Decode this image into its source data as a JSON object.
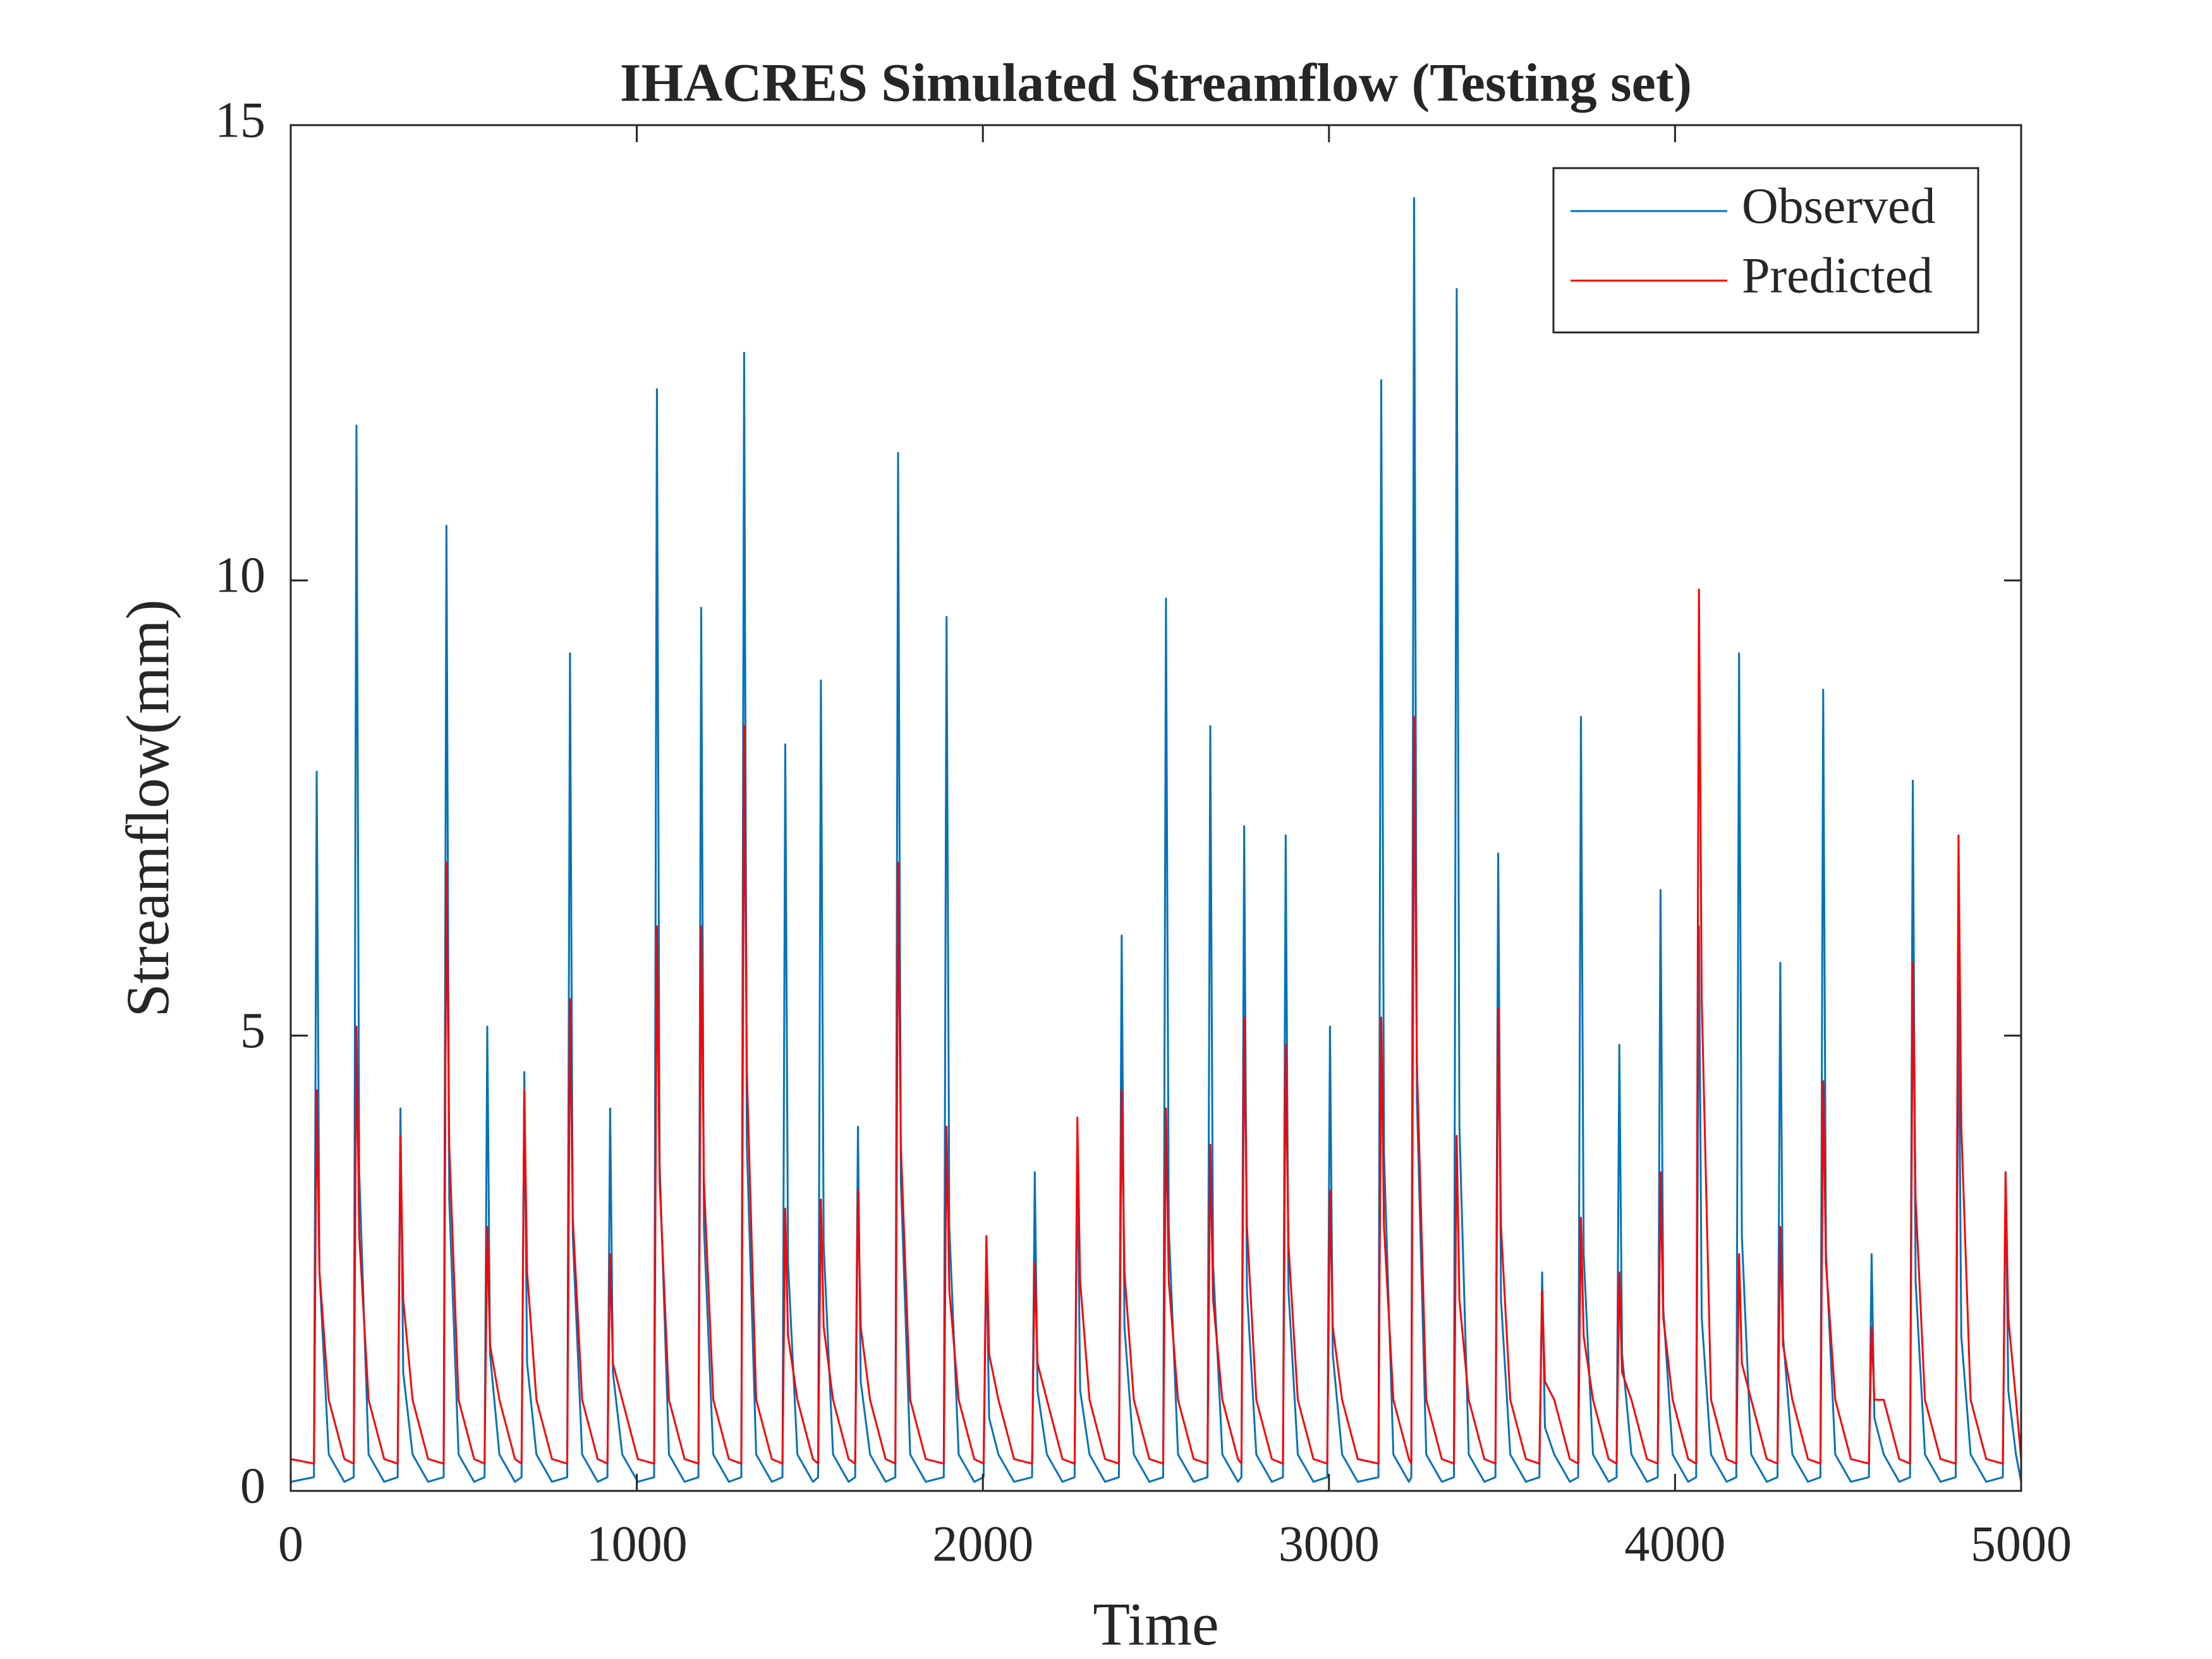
{
  "chart_data": {
    "type": "line",
    "title": "IHACRES Simulated Streamflow (Testing set)",
    "x_label": "Time",
    "y_label": "Streamflow(mm)",
    "xlim": [
      0,
      5000
    ],
    "xticks": [
      0,
      1000,
      2000,
      3000,
      4000,
      5000
    ],
    "ylim": [
      0,
      15
    ],
    "yticks": [
      0,
      5,
      10,
      15
    ],
    "legend": "northeast",
    "x": [
      0,
      67,
      75,
      83,
      110,
      155,
      182,
      190,
      198,
      225,
      270,
      309,
      317,
      325,
      352,
      397,
      442,
      450,
      458,
      485,
      530,
      560,
      568,
      576,
      603,
      648,
      667,
      675,
      683,
      710,
      755,
      799,
      807,
      815,
      842,
      887,
      915,
      923,
      931,
      958,
      1003,
      1050,
      1058,
      1066,
      1093,
      1138,
      1178,
      1186,
      1194,
      1221,
      1266,
      1302,
      1310,
      1318,
      1345,
      1390,
      1421,
      1429,
      1437,
      1464,
      1509,
      1524,
      1532,
      1540,
      1567,
      1612,
      1631,
      1639,
      1647,
      1674,
      1719,
      1747,
      1755,
      1763,
      1790,
      1835,
      1887,
      1895,
      1903,
      1930,
      1975,
      2002,
      2010,
      2018,
      2045,
      2090,
      2142,
      2150,
      2158,
      2185,
      2230,
      2265,
      2273,
      2281,
      2308,
      2353,
      2393,
      2401,
      2409,
      2436,
      2481,
      2521,
      2529,
      2537,
      2564,
      2609,
      2649,
      2657,
      2665,
      2692,
      2737,
      2747,
      2755,
      2763,
      2790,
      2835,
      2867,
      2875,
      2883,
      2910,
      2955,
      2995,
      3003,
      3011,
      3038,
      3083,
      3143,
      3151,
      3159,
      3186,
      3231,
      3238,
      3246,
      3254,
      3281,
      3326,
      3361,
      3369,
      3377,
      3404,
      3449,
      3481,
      3489,
      3497,
      3524,
      3569,
      3608,
      3616,
      3624,
      3651,
      3696,
      3720,
      3728,
      3736,
      3763,
      3808,
      3831,
      3839,
      3847,
      3874,
      3919,
      3950,
      3958,
      3966,
      3993,
      4038,
      4061,
      4069,
      4077,
      4104,
      4149,
      4177,
      4185,
      4193,
      4220,
      4265,
      4296,
      4304,
      4312,
      4339,
      4384,
      4420,
      4428,
      4436,
      4463,
      4508,
      4560,
      4568,
      4576,
      4603,
      4648,
      4679,
      4687,
      4695,
      4722,
      4767,
      4811,
      4819,
      4827,
      4854,
      4899,
      4947,
      4955,
      4963,
      4985,
      5000
    ],
    "series": [
      {
        "name": "Observed",
        "color": "#0072BD",
        "values": [
          0.1,
          0.15,
          7.9,
          2.4,
          0.4,
          0.1,
          0.15,
          11.7,
          3.5,
          0.4,
          0.1,
          0.15,
          4.2,
          1.3,
          0.4,
          0.1,
          0.15,
          10.6,
          3.2,
          0.4,
          0.1,
          0.15,
          5.1,
          1.5,
          0.4,
          0.1,
          0.15,
          4.6,
          1.4,
          0.4,
          0.1,
          0.15,
          9.2,
          2.8,
          0.4,
          0.1,
          0.15,
          4.2,
          1.3,
          0.4,
          0.1,
          0.15,
          12.1,
          3.6,
          0.4,
          0.1,
          0.15,
          9.7,
          2.9,
          0.4,
          0.1,
          0.15,
          12.5,
          3.8,
          0.4,
          0.1,
          0.15,
          8.2,
          2.5,
          0.4,
          0.1,
          0.15,
          8.9,
          2.7,
          0.4,
          0.1,
          0.15,
          4.0,
          1.2,
          0.4,
          0.1,
          0.15,
          11.4,
          3.4,
          0.4,
          0.1,
          0.15,
          9.6,
          2.9,
          0.4,
          0.1,
          0.15,
          2.7,
          0.8,
          0.4,
          0.1,
          0.15,
          3.5,
          1.1,
          0.4,
          0.1,
          0.15,
          3.8,
          1.1,
          0.4,
          0.1,
          0.15,
          6.1,
          1.8,
          0.4,
          0.1,
          0.15,
          9.8,
          2.9,
          0.4,
          0.1,
          0.15,
          8.4,
          2.5,
          0.4,
          0.1,
          0.15,
          7.3,
          2.2,
          0.4,
          0.1,
          0.15,
          7.2,
          2.2,
          0.4,
          0.1,
          0.15,
          5.1,
          1.5,
          0.4,
          0.1,
          0.15,
          12.2,
          3.7,
          0.4,
          0.1,
          0.15,
          14.2,
          4.3,
          0.4,
          0.1,
          0.15,
          13.2,
          4.0,
          0.4,
          0.1,
          0.15,
          7.0,
          2.1,
          0.4,
          0.1,
          0.15,
          2.4,
          0.7,
          0.4,
          0.1,
          0.15,
          8.5,
          2.6,
          0.4,
          0.1,
          0.15,
          4.9,
          1.5,
          0.4,
          0.1,
          0.15,
          6.6,
          2.0,
          0.4,
          0.1,
          0.15,
          6.2,
          1.9,
          0.4,
          0.1,
          0.15,
          9.2,
          2.8,
          0.4,
          0.1,
          0.15,
          5.8,
          1.7,
          0.4,
          0.1,
          0.15,
          8.8,
          2.6,
          0.4,
          0.1,
          0.15,
          2.6,
          0.8,
          0.4,
          0.1,
          0.15,
          7.8,
          2.3,
          0.4,
          0.1,
          0.15,
          5.6,
          1.7,
          0.4,
          0.1,
          0.15,
          3.5,
          1.1,
          0.4,
          0.1
        ]
      },
      {
        "name": "Predicted",
        "color": "#FF0000",
        "values": [
          0.35,
          0.3,
          4.4,
          2.4,
          1.0,
          0.35,
          0.3,
          5.1,
          2.8,
          1.0,
          0.35,
          0.3,
          3.9,
          2.1,
          1.0,
          0.35,
          0.3,
          6.9,
          3.8,
          1.0,
          0.35,
          0.3,
          2.9,
          1.6,
          1.0,
          0.35,
          0.3,
          4.4,
          2.4,
          1.0,
          0.35,
          0.3,
          5.4,
          3.0,
          1.0,
          0.35,
          0.3,
          2.6,
          1.4,
          1.0,
          0.35,
          0.3,
          6.2,
          3.4,
          1.0,
          0.35,
          0.3,
          6.2,
          3.4,
          1.0,
          0.35,
          0.3,
          8.4,
          4.6,
          1.0,
          0.35,
          0.3,
          3.1,
          1.7,
          1.0,
          0.35,
          0.3,
          3.2,
          1.8,
          1.0,
          0.35,
          0.3,
          3.3,
          1.8,
          1.0,
          0.35,
          0.3,
          6.9,
          3.8,
          1.0,
          0.35,
          0.3,
          4.0,
          2.2,
          1.0,
          0.35,
          0.3,
          2.8,
          1.5,
          1.0,
          0.35,
          0.3,
          2.5,
          1.4,
          1.0,
          0.35,
          0.3,
          4.1,
          2.3,
          1.0,
          0.35,
          0.3,
          4.4,
          2.4,
          1.0,
          0.35,
          0.3,
          4.2,
          2.3,
          1.0,
          0.35,
          0.3,
          3.8,
          2.1,
          1.0,
          0.35,
          0.3,
          5.2,
          2.9,
          1.0,
          0.35,
          0.3,
          4.9,
          2.7,
          1.0,
          0.35,
          0.3,
          3.3,
          1.8,
          1.0,
          0.35,
          0.3,
          5.2,
          2.9,
          1.0,
          0.35,
          0.3,
          8.5,
          4.7,
          1.0,
          0.35,
          0.3,
          3.9,
          2.1,
          1.0,
          0.35,
          0.3,
          5.3,
          2.9,
          1.0,
          0.35,
          0.3,
          2.2,
          1.2,
          1.0,
          0.35,
          0.3,
          3.0,
          1.7,
          1.0,
          0.35,
          0.3,
          2.4,
          1.3,
          1.0,
          0.35,
          0.3,
          3.5,
          1.9,
          1.0,
          0.35,
          0.3,
          9.9,
          5.4,
          1.0,
          0.35,
          0.3,
          2.6,
          1.4,
          1.0,
          0.35,
          0.3,
          2.9,
          1.6,
          1.0,
          0.35,
          0.3,
          4.5,
          2.5,
          1.0,
          0.35,
          0.3,
          1.8,
          1.0,
          1.0,
          0.35,
          0.3,
          5.8,
          3.2,
          1.0,
          0.35,
          0.3,
          7.2,
          4.0,
          1.0,
          0.35,
          0.3,
          3.5,
          1.9,
          1.0,
          0.35
        ]
      }
    ]
  }
}
